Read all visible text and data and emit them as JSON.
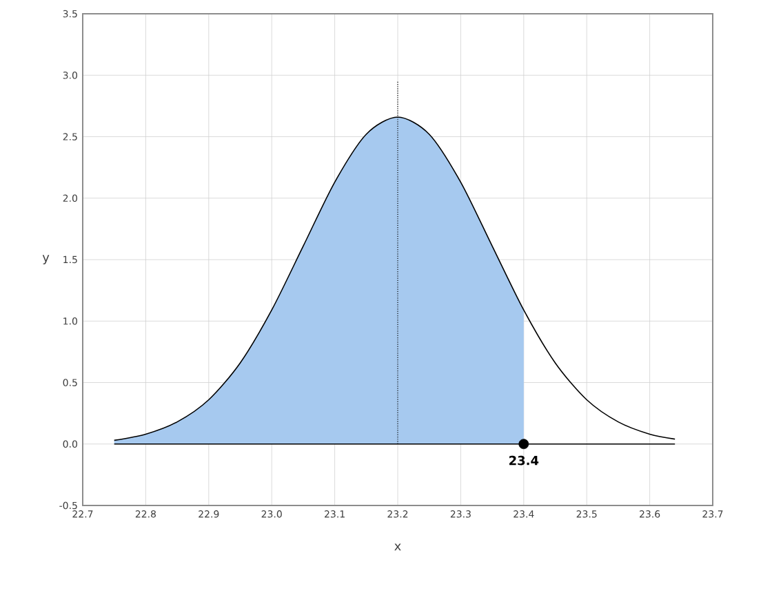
{
  "chart_data": {
    "type": "line",
    "xlabel": "x",
    "ylabel": "y",
    "xlim": [
      22.7,
      23.7
    ],
    "ylim": [
      -0.5,
      3.5
    ],
    "xticks": [
      22.7,
      22.8,
      22.9,
      {
        "value": 23.0,
        "label": "23.0"
      },
      23.1,
      23.2,
      23.3,
      23.4,
      23.5,
      23.6,
      23.7
    ],
    "yticks": [
      -0.5,
      {
        "value": 0,
        "label": "0.0"
      },
      0.5,
      {
        "value": 1.0,
        "label": "1.0"
      },
      1.5,
      {
        "value": 2.0,
        "label": "2.0"
      },
      2.5,
      {
        "value": 3.0,
        "label": "3.0"
      },
      3.5
    ],
    "grid": true,
    "series": [
      {
        "type": "area",
        "color": "#a6c9ef",
        "x": [
          22.75,
          22.8,
          22.85,
          22.9,
          22.95,
          23.0,
          23.05,
          23.1,
          23.15,
          23.2,
          23.25,
          23.3,
          23.35,
          23.4
        ],
        "values": [
          0.03,
          0.08,
          0.18,
          0.36,
          0.66,
          1.09,
          1.61,
          2.13,
          2.52,
          2.66,
          2.52,
          2.13,
          1.61,
          1.09
        ]
      },
      {
        "color": "#000000",
        "line_style": "solid",
        "x": [
          22.75,
          22.8,
          22.85,
          22.9,
          22.95,
          23.0,
          23.05,
          23.1,
          23.15,
          23.2,
          23.25,
          23.3,
          23.35,
          23.4,
          23.45,
          23.5,
          23.55,
          23.6,
          23.64
        ],
        "values": [
          0.03,
          0.08,
          0.18,
          0.36,
          0.66,
          1.09,
          1.61,
          2.13,
          2.52,
          2.66,
          2.52,
          2.13,
          1.61,
          1.09,
          0.66,
          0.36,
          0.18,
          0.08,
          0.04
        ]
      },
      {
        "color": "#000000",
        "line_style": "dotted",
        "x": [
          23.2,
          23.2
        ],
        "values": [
          0,
          2.95
        ]
      },
      {
        "color": "#000000",
        "line_style": "solid",
        "x": [
          22.75,
          23.64
        ],
        "values": [
          0,
          0
        ]
      },
      {
        "type": "scatter",
        "color": "#000000",
        "marker": "circle",
        "x": [
          23.4
        ],
        "values": [
          0
        ]
      }
    ],
    "annotations": [
      {
        "text": "23.4",
        "x": 23.4,
        "y": 0
      }
    ]
  }
}
